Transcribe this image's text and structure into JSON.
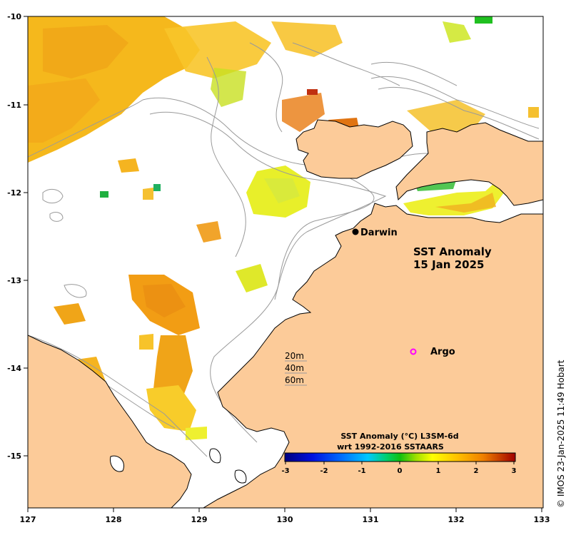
{
  "map": {
    "title_line1": "SST Anomaly",
    "title_line2": "15 Jan 2025",
    "x_ticks": [
      "127",
      "128",
      "129",
      "130",
      "131",
      "132",
      "133"
    ],
    "y_ticks": [
      "-10",
      "-11",
      "-12",
      "-13",
      "-14",
      "-15"
    ],
    "places": {
      "darwin": "Darwin",
      "argo": "Argo"
    },
    "depth_contours": [
      "20m",
      "40m",
      "60m"
    ],
    "colors": {
      "land": "#fccb99",
      "ocean": "#ffffff",
      "coastline": "#000000",
      "contours": "#999999",
      "argo_marker": "#ff00ff"
    }
  },
  "colorbar": {
    "title_line1": "SST Anomaly (°C) L3SM-6d",
    "title_line2": "wrt 1992-2016 SSTAARS",
    "ticks": [
      "-3",
      "-2",
      "-1",
      "0",
      "1",
      "2",
      "3"
    ],
    "range": [
      -3,
      3
    ]
  },
  "credit": "© IMOS 23-Jan-2025 11:49 Hobart"
}
